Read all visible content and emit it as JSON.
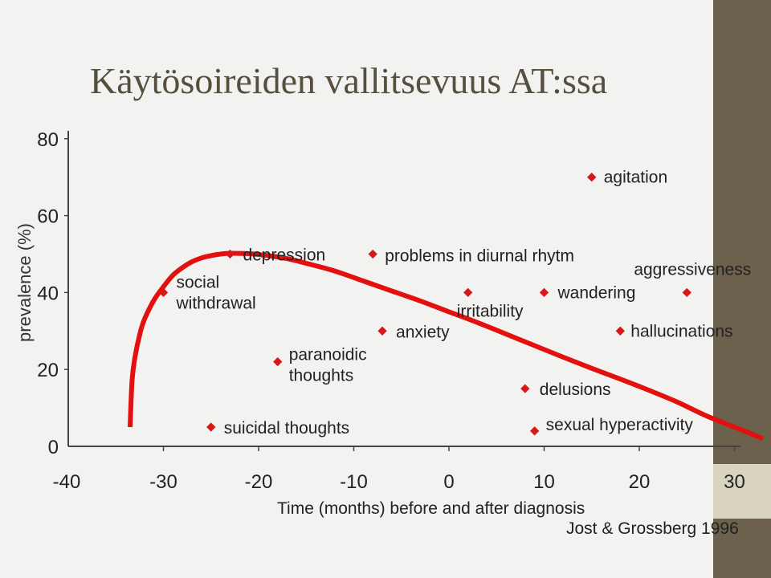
{
  "slide": {
    "title": "Käytösoireiden vallitsevuus AT:ssa"
  },
  "colors": {
    "curve": "#e31010",
    "marker": "#d61818",
    "axis": "#444444",
    "sidebar": "#6b614c",
    "title": "#564f3e"
  },
  "chart_data": {
    "type": "scatter",
    "xlabel": "Time (months) before and after diagnosis",
    "ylabel": "prevalence (%)",
    "source": "Jost & Grossberg 1996",
    "xlim": [
      -40,
      30
    ],
    "ylim": [
      0,
      80
    ],
    "xticks": [
      -40,
      -30,
      -20,
      -10,
      0,
      10,
      20,
      30
    ],
    "yticks": [
      0,
      20,
      40,
      60,
      80
    ],
    "series": [
      {
        "name": "social withdrawal",
        "lines": [
          "social",
          "withdrawal"
        ],
        "x": -30,
        "y": 40
      },
      {
        "name": "depression",
        "lines": [
          "depression"
        ],
        "x": -23,
        "y": 50
      },
      {
        "name": "suicidal thoughts",
        "lines": [
          "suicidal thoughts"
        ],
        "x": -25,
        "y": 5
      },
      {
        "name": "paranoidic thoughts",
        "lines": [
          "paranoidic",
          "thoughts"
        ],
        "x": -18,
        "y": 22
      },
      {
        "name": "problems in diurnal rhytm",
        "lines": [
          "problems in diurnal rhytm"
        ],
        "x": -8,
        "y": 50
      },
      {
        "name": "anxiety",
        "lines": [
          "anxiety"
        ],
        "x": -7,
        "y": 30
      },
      {
        "name": "irritability",
        "lines": [
          "irritability"
        ],
        "x": 2,
        "y": 40
      },
      {
        "name": "delusions",
        "lines": [
          "delusions"
        ],
        "x": 8,
        "y": 15
      },
      {
        "name": "sexual hyperactivity",
        "lines": [
          "sexual hyperactivity"
        ],
        "x": 9,
        "y": 4
      },
      {
        "name": "wandering",
        "lines": [
          "wandering"
        ],
        "x": 10,
        "y": 40
      },
      {
        "name": "agitation",
        "lines": [
          "agitation"
        ],
        "x": 15,
        "y": 70
      },
      {
        "name": "hallucinations",
        "lines": [
          "hallucinations"
        ],
        "x": 18,
        "y": 30
      },
      {
        "name": "aggressiveness",
        "lines": [
          "aggressiveness"
        ],
        "x": 25,
        "y": 40
      }
    ],
    "trend_curve": {
      "x": [
        -33.5,
        -33.3,
        -33,
        -32.5,
        -32,
        -31,
        -30,
        -29,
        -28,
        -27,
        -26,
        -25,
        -24,
        -23,
        -21,
        -19,
        -17,
        -15,
        -12,
        -9,
        -6,
        -3,
        0,
        3,
        6,
        9,
        12,
        15,
        18,
        21,
        24,
        27,
        30,
        33
      ],
      "y": [
        5,
        17,
        23,
        29,
        33,
        38,
        41.5,
        44.5,
        46.5,
        48,
        49,
        49.6,
        50,
        50.2,
        50.1,
        49.6,
        48.8,
        47.6,
        45.6,
        43,
        40.4,
        37.8,
        35,
        32.2,
        29.2,
        26.2,
        23.2,
        20.3,
        17.5,
        14.6,
        11.5,
        8,
        5,
        2
      ]
    }
  }
}
